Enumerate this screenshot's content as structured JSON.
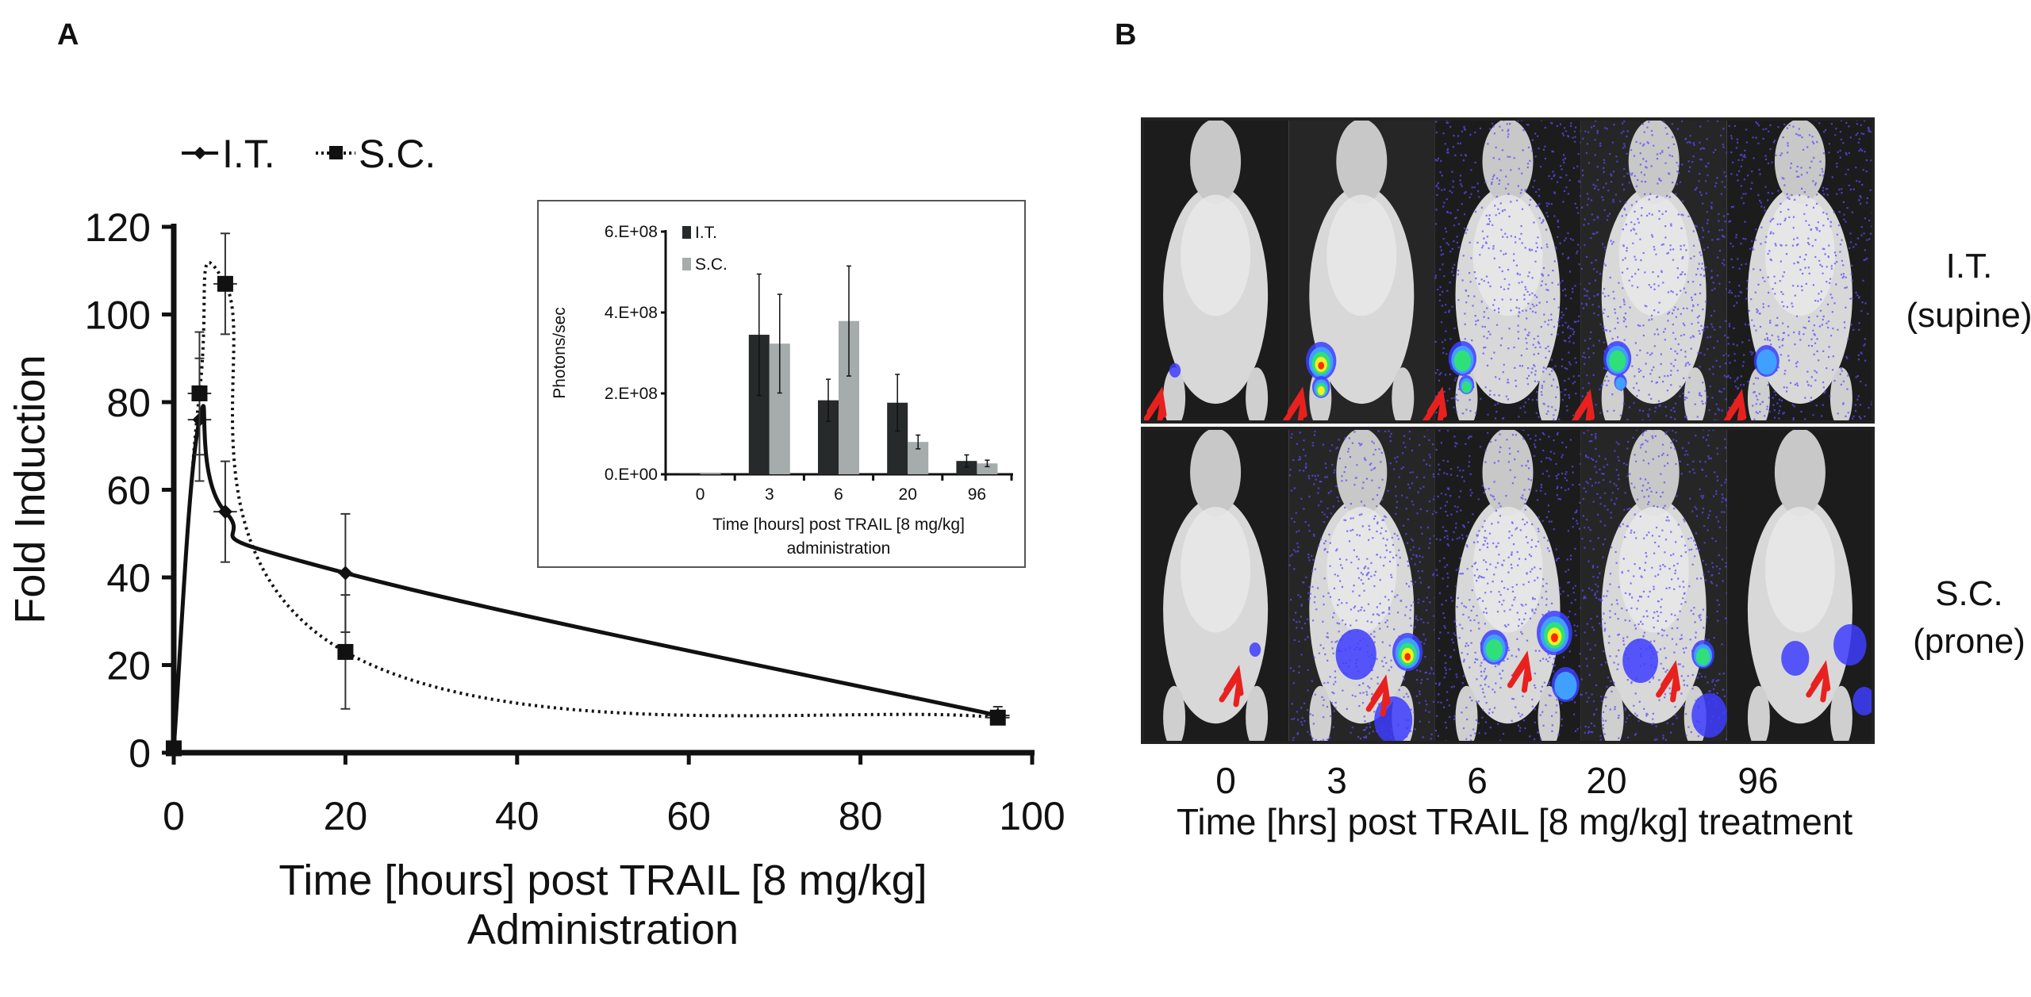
{
  "panel_labels": {
    "a": "A",
    "b": "B"
  },
  "chart_data": [
    {
      "type": "line",
      "panel": "A",
      "xlabel_line1": "Time [hours] post TRAIL [8 mg/kg]",
      "xlabel_line2": "Administration",
      "ylabel": "Fold Induction",
      "xlim": [
        0,
        100
      ],
      "ylim": [
        0,
        120
      ],
      "xticks": [
        "0",
        "20",
        "40",
        "60",
        "80",
        "100"
      ],
      "yticks": [
        "0",
        "20",
        "40",
        "60",
        "80",
        "100",
        "120"
      ],
      "grid": false,
      "legend_position": "top-left",
      "series": [
        {
          "name": "I.T.",
          "style": "solid",
          "marker": "diamond",
          "color": "#111111",
          "x": [
            0,
            3,
            6,
            20,
            96
          ],
          "y": [
            1,
            76,
            55,
            41,
            8.5
          ],
          "yerr": [
            0.5,
            14,
            11.5,
            13.5,
            2
          ],
          "xerr": [
            0.5,
            1,
            1,
            0.5,
            1
          ]
        },
        {
          "name": "S.C.",
          "style": "dotted",
          "marker": "square",
          "color": "#111111",
          "x": [
            0,
            3,
            6,
            20,
            96
          ],
          "y": [
            1,
            82,
            107,
            23,
            8
          ],
          "yerr": [
            0.5,
            14,
            11.5,
            13,
            1.5
          ],
          "xerr": [
            0.5,
            1,
            1,
            0.5,
            1
          ]
        }
      ]
    },
    {
      "type": "bar",
      "panel": "A-inset",
      "categories": [
        "0",
        "3",
        "6",
        "20",
        "96"
      ],
      "xlabel_line1": "Time [hours] post TRAIL [8 mg/kg]",
      "xlabel_line2": "administration",
      "ylabel": "Photons/sec",
      "ylim": [
        0,
        600000000
      ],
      "yticks": [
        "0.E+00",
        "2.E+08",
        "4.E+08",
        "6.E+08"
      ],
      "legend_position": "top-left",
      "series": [
        {
          "name": "I.T.",
          "color": "#262a2b",
          "values": [
            3000000,
            345000000,
            183000000,
            177000000,
            33000000
          ],
          "err": [
            0,
            150000000,
            52000000,
            70000000,
            15000000
          ]
        },
        {
          "name": "S.C.",
          "color": "#a5acab",
          "values": [
            2000000,
            323000000,
            379000000,
            80000000,
            27000000
          ],
          "err": [
            0,
            122000000,
            136000000,
            17000000,
            8000000
          ]
        }
      ]
    }
  ],
  "panel_b": {
    "rows": [
      {
        "label_line1": "I.T.",
        "label_line2": "(supine)"
      },
      {
        "label_line1": "S.C.",
        "label_line2": "(prone)"
      }
    ],
    "timepoints": [
      "0",
      "3",
      "6",
      "20",
      "96"
    ],
    "caption": "Time [hrs] post TRAIL [8 mg/kg] treatment",
    "colors": {
      "arrow": "#e8211f",
      "signal_low": "#4b4bff",
      "signal_high": "#ff1a00"
    }
  }
}
